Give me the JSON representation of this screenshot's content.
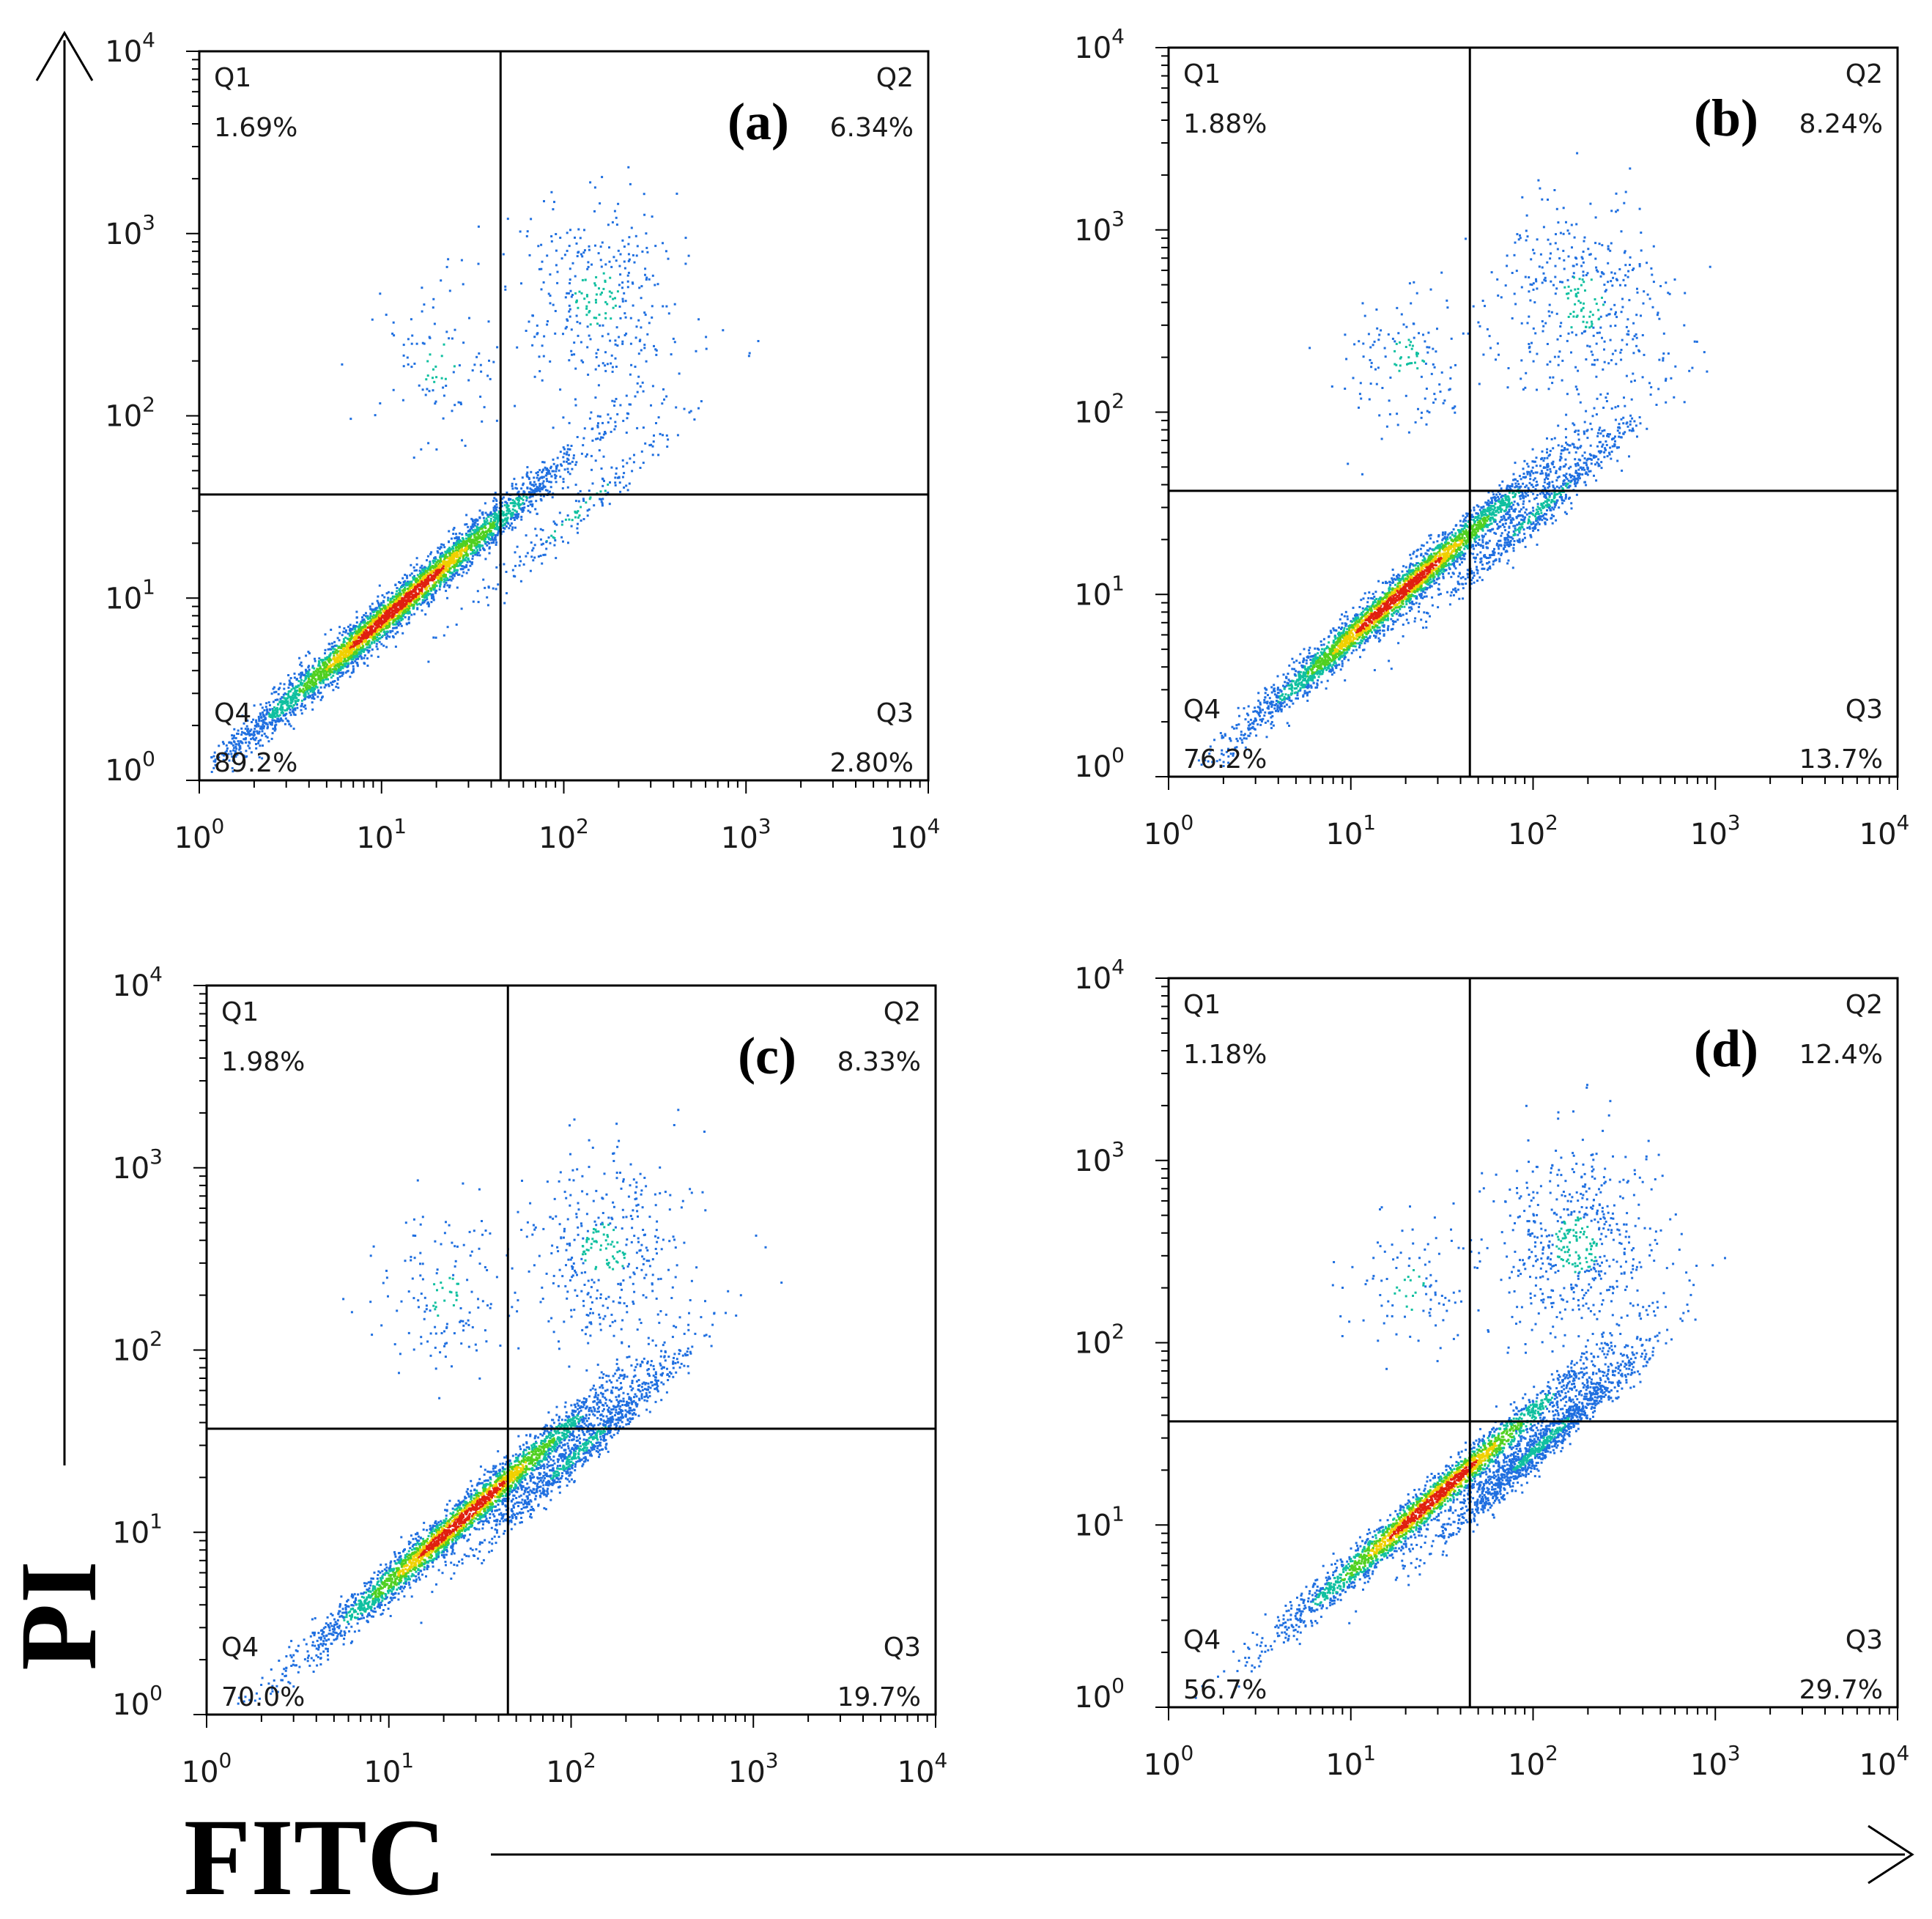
{
  "figure": {
    "x_axis_label": "FITC",
    "y_axis_label": "PI"
  },
  "chart_data": [
    {
      "type": "scatter",
      "panel_label": "(a)",
      "xscale": "log",
      "yscale": "log",
      "xlim": [
        1,
        10000
      ],
      "ylim": [
        1,
        10000
      ],
      "x_ticks": [
        "10^0",
        "10^1",
        "10^2",
        "10^3",
        "10^4"
      ],
      "y_ticks": [
        "10^0",
        "10^1",
        "10^2",
        "10^3",
        "10^4"
      ],
      "gate": {
        "x": 45,
        "y": 37
      },
      "quadrants": {
        "Q1": {
          "label": "Q1",
          "percent": "1.69%"
        },
        "Q2": {
          "label": "Q2",
          "percent": "6.34%"
        },
        "Q3": {
          "label": "Q3",
          "percent": "2.80%"
        },
        "Q4": {
          "label": "Q4",
          "percent": "89.2%"
        }
      },
      "clusters": [
        {
          "center_x": 12,
          "center_y": 9,
          "spread": 0.6,
          "weight": 0.89
        },
        {
          "center_x": 150,
          "center_y": 450,
          "spread": 0.5,
          "weight": 0.07
        },
        {
          "center_x": 120,
          "center_y": 30,
          "spread": 0.4,
          "weight": 0.03
        },
        {
          "center_x": 20,
          "center_y": 200,
          "spread": 0.4,
          "weight": 0.01
        }
      ]
    },
    {
      "type": "scatter",
      "panel_label": "(b)",
      "xscale": "log",
      "yscale": "log",
      "xlim": [
        1,
        10000
      ],
      "ylim": [
        1,
        10000
      ],
      "x_ticks": [
        "10^0",
        "10^1",
        "10^2",
        "10^3",
        "10^4"
      ],
      "y_ticks": [
        "10^0",
        "10^1",
        "10^2",
        "10^3",
        "10^4"
      ],
      "gate": {
        "x": 45,
        "y": 37
      },
      "quadrants": {
        "Q1": {
          "label": "Q1",
          "percent": "1.88%"
        },
        "Q2": {
          "label": "Q2",
          "percent": "8.24%"
        },
        "Q3": {
          "label": "Q3",
          "percent": "13.7%"
        },
        "Q4": {
          "label": "Q4",
          "percent": "76.2%"
        }
      },
      "clusters": [
        {
          "center_x": 18,
          "center_y": 10,
          "spread": 0.55,
          "weight": 0.76
        },
        {
          "center_x": 180,
          "center_y": 400,
          "spread": 0.5,
          "weight": 0.08
        },
        {
          "center_x": 110,
          "center_y": 30,
          "spread": 0.35,
          "weight": 0.14
        },
        {
          "center_x": 20,
          "center_y": 200,
          "spread": 0.4,
          "weight": 0.02
        }
      ]
    },
    {
      "type": "scatter",
      "panel_label": "(c)",
      "xscale": "log",
      "yscale": "log",
      "xlim": [
        1,
        10000
      ],
      "ylim": [
        1,
        10000
      ],
      "x_ticks": [
        "10^0",
        "10^1",
        "10^2",
        "10^3",
        "10^4"
      ],
      "y_ticks": [
        "10^0",
        "10^1",
        "10^2",
        "10^3",
        "10^4"
      ],
      "gate": {
        "x": 45,
        "y": 37
      },
      "quadrants": {
        "Q1": {
          "label": "Q1",
          "percent": "1.98%"
        },
        "Q2": {
          "label": "Q2",
          "percent": "8.33%"
        },
        "Q3": {
          "label": "Q3",
          "percent": "19.7%"
        },
        "Q4": {
          "label": "Q4",
          "percent": "70.0%"
        }
      },
      "clusters": [
        {
          "center_x": 25,
          "center_y": 12,
          "spread": 0.55,
          "weight": 0.7
        },
        {
          "center_x": 150,
          "center_y": 350,
          "spread": 0.5,
          "weight": 0.08
        },
        {
          "center_x": 110,
          "center_y": 28,
          "spread": 0.35,
          "weight": 0.2
        },
        {
          "center_x": 20,
          "center_y": 200,
          "spread": 0.4,
          "weight": 0.02
        }
      ]
    },
    {
      "type": "scatter",
      "panel_label": "(d)",
      "xscale": "log",
      "yscale": "log",
      "xlim": [
        1,
        10000
      ],
      "ylim": [
        1,
        10000
      ],
      "x_ticks": [
        "10^0",
        "10^1",
        "10^2",
        "10^3",
        "10^4"
      ],
      "y_ticks": [
        "10^0",
        "10^1",
        "10^2",
        "10^3",
        "10^4"
      ],
      "gate": {
        "x": 45,
        "y": 37
      },
      "quadrants": {
        "Q1": {
          "label": "Q1",
          "percent": "1.18%"
        },
        "Q2": {
          "label": "Q2",
          "percent": "12.4%"
        },
        "Q3": {
          "label": "Q3",
          "percent": "29.7%"
        },
        "Q4": {
          "label": "Q4",
          "percent": "56.7%"
        }
      },
      "clusters": [
        {
          "center_x": 28,
          "center_y": 14,
          "spread": 0.55,
          "weight": 0.57
        },
        {
          "center_x": 170,
          "center_y": 350,
          "spread": 0.5,
          "weight": 0.12
        },
        {
          "center_x": 110,
          "center_y": 28,
          "spread": 0.35,
          "weight": 0.3
        },
        {
          "center_x": 20,
          "center_y": 200,
          "spread": 0.4,
          "weight": 0.01
        }
      ]
    }
  ]
}
